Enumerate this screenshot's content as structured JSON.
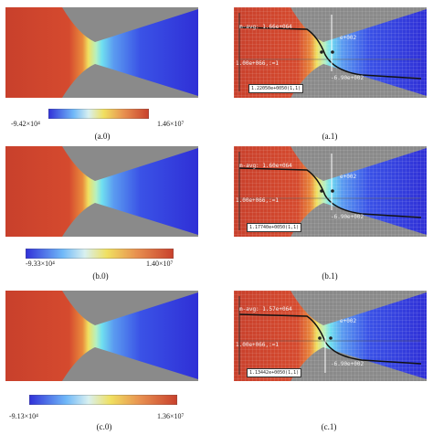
{
  "rows": [
    {
      "left": {
        "colorbar_min": "-9.42×10⁴",
        "colorbar_max": "1.46×10⁷",
        "caption": "(a.0)"
      },
      "right": {
        "caption": "(a.1)",
        "label_top": "m-avg: 1.66e+064",
        "label_left": "1.00e+066,:=1",
        "val_right_top": "e+002",
        "val_right_bottom": "-6.90e+002",
        "probe_box": "1.22050e+0050(1,1)"
      }
    },
    {
      "left": {
        "colorbar_min": "-9.33×10⁴",
        "colorbar_max": "1.40×10⁷",
        "caption": "(b.0)"
      },
      "right": {
        "caption": "(b.1)",
        "label_top": "m-avg: 1.60e+064",
        "label_left": "1.00e+066,:=1",
        "val_right_top": "e+002",
        "val_right_bottom": "-6.90e+002",
        "probe_box": "1.17740e+0050(1,1)"
      }
    },
    {
      "left": {
        "colorbar_min": "-9.13×10⁴",
        "colorbar_max": "1.36×10⁷",
        "caption": "(c.0)"
      },
      "right": {
        "caption": "(c.1)",
        "label_top": "m-avg: 1.57e+064",
        "label_left": "1.00e+066,:=1",
        "val_right_top": "e+002",
        "val_right_bottom": "-6.90e+002",
        "probe_box": "1.13442e+0050(1,1)"
      }
    }
  ],
  "colors": {
    "red": "#c8402c",
    "yellow": "#f0e060",
    "cyan": "#70e0f0",
    "blue": "#3030d8",
    "wall": "#8a8a8a"
  }
}
